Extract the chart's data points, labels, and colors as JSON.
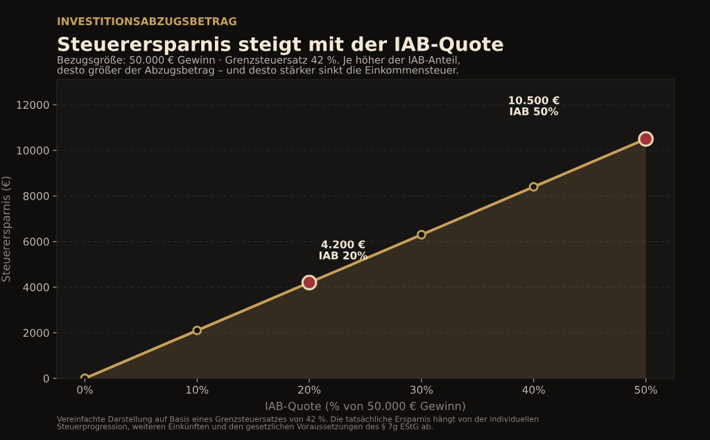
{
  "chart_data": {
    "type": "area",
    "title": "Steuerersparnis steigt mit der IAB-Quote",
    "subtitle": "Bezugsgröße: 50.000 € Gewinn · Grenzsteuersatz 42 %. Je höher der IAB-Anteil,\ndesto größer der Abzugsbetrag – und desto stärker sinkt die Einkommensteuer.",
    "xlabel": "IAB-Quote (% von 50.000 € Gewinn)",
    "ylabel": "Steuerersparnis (€)",
    "series": [
      {
        "color": "#c9a05a",
        "x": [
          0,
          10,
          20,
          30,
          40,
          50
        ],
        "values": [
          0,
          2100,
          4200,
          6300,
          8400,
          10500
        ],
        "marker": "circle"
      },
      {
        "type": "scatter",
        "color": "#a3333a",
        "x": [
          20,
          50
        ],
        "values": [
          4200,
          10500
        ],
        "marker": "circle"
      }
    ],
    "xlim": [
      -2.5,
      52.5
    ],
    "xticks": [
      {
        "value": 0,
        "label": "0%"
      },
      {
        "value": 10,
        "label": "10%"
      },
      {
        "value": 20,
        "label": "20%"
      },
      {
        "value": 30,
        "label": "30%"
      },
      {
        "value": 40,
        "label": "40%"
      },
      {
        "value": 50,
        "label": "50%"
      }
    ],
    "ylim": [
      0,
      13100
    ],
    "yticks": [
      0,
      2000,
      4000,
      6000,
      8000,
      10000,
      12000
    ],
    "grid": "y",
    "annotations": [
      "INVESTITIONSABZUGSBETRAG",
      "4.200 €\nIAB 20%",
      "10.500 €\nIAB 50%",
      "Vereinfachte Darstellung auf Basis eines Grenzsteuersatzes von 42 %. Die tatsächliche Ersparnis hängt von der individuellen\nSteuerprogression, weiteren Einkünften und den gesetzlichen Voraussetzungen des § 7g EStG ab."
    ]
  }
}
